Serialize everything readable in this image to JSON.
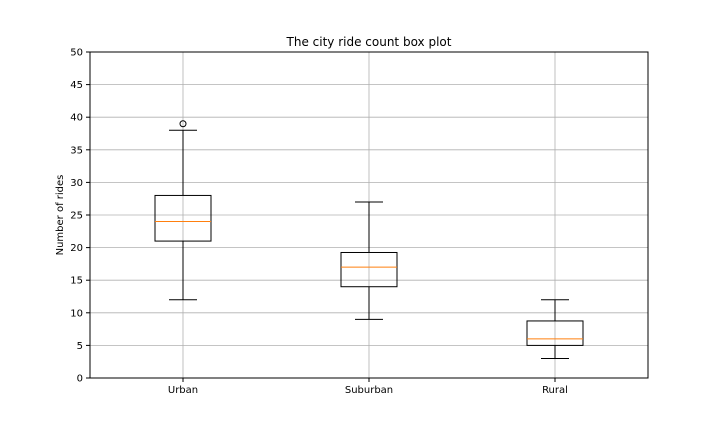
{
  "chart_data": {
    "type": "box",
    "title": "The city ride count box plot",
    "xlabel": "",
    "ylabel": "Number of rides",
    "ylim": [
      0,
      50
    ],
    "yticks": [
      0,
      5,
      10,
      15,
      20,
      25,
      30,
      35,
      40,
      45,
      50
    ],
    "grid": true,
    "categories": [
      "Urban",
      "Suburban",
      "Rural"
    ],
    "boxes": [
      {
        "whisker_low": 12,
        "q1": 21,
        "median": 24,
        "q3": 28,
        "whisker_high": 38,
        "outliers": [
          39
        ]
      },
      {
        "whisker_low": 9,
        "q1": 14,
        "median": 17,
        "q3": 19.25,
        "whisker_high": 27,
        "outliers": []
      },
      {
        "whisker_low": 3,
        "q1": 5,
        "median": 6,
        "q3": 8.75,
        "whisker_high": 12,
        "outliers": []
      }
    ],
    "colors": {
      "box": "#000000",
      "median": "#ff7f0e",
      "grid": "#b0b0b0"
    }
  }
}
